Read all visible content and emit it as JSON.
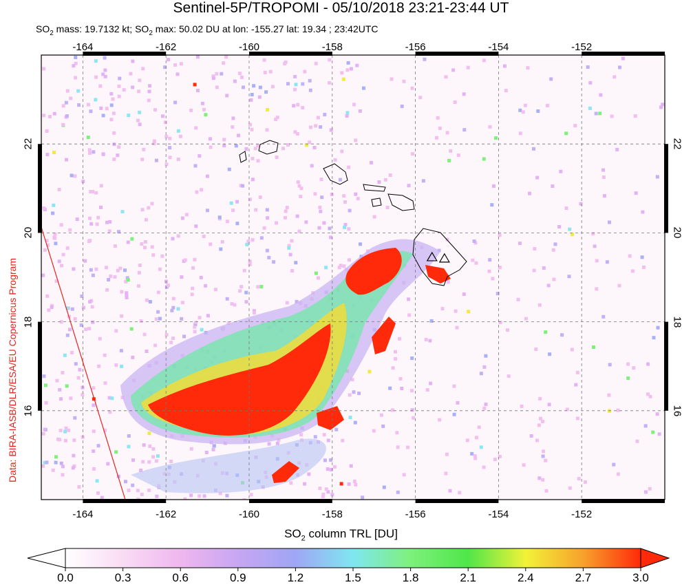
{
  "title": "Sentinel-5P/TROPOMI - 05/10/2018 23:21-23:44 UT",
  "subtitle": {
    "mass_prefix": "SO",
    "mass_sub": "2",
    "mass_text": " mass: 19.7132 kt; SO",
    "max_sub": "2",
    "max_text": " max: 50.02 DU at lon: -155.27 lat: 19.34 ; 23:42UTC"
  },
  "side_credit": "Data: BIRA-IASB/DLR/ESA/EU Copernicus Program",
  "map": {
    "lon_range": [
      -165,
      -150
    ],
    "lat_range": [
      14,
      24
    ],
    "lon_ticks": [
      "-164",
      "-162",
      "-160",
      "-158",
      "-156",
      "-154",
      "-152"
    ],
    "lat_ticks": [
      "22",
      "20",
      "18",
      "16"
    ],
    "volcano_markers": [
      {
        "lon": -155.6,
        "lat": 19.45,
        "icon": "triangle-icon"
      },
      {
        "lon": -155.3,
        "lat": 19.42,
        "icon": "triangle-icon"
      }
    ],
    "max_location": {
      "lon": -155.27,
      "lat": 19.34
    }
  },
  "colorbar": {
    "title_prefix": "SO",
    "title_sub": "2",
    "title_text": " column TRL [DU]",
    "ticks": [
      "0.0",
      "0.3",
      "0.6",
      "0.9",
      "1.2",
      "1.5",
      "1.8",
      "2.1",
      "2.4",
      "2.7",
      "3.0"
    ],
    "range": [
      0,
      3
    ],
    "colors": [
      "#ffffff",
      "#f7c6ee",
      "#d9a9f2",
      "#a7a3f4",
      "#7fe2f2",
      "#4fe07f",
      "#b6f23a",
      "#f5e93a",
      "#f79a2a",
      "#ff2a0a"
    ]
  }
}
